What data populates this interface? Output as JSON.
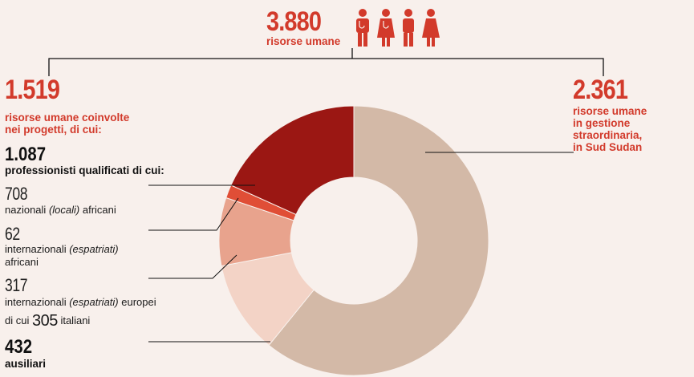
{
  "header": {
    "total_value": "3.880",
    "total_label": "risorse umane",
    "people_icon_color": "#d23a2b"
  },
  "left": {
    "value": "1.519",
    "label_line1": "risorse umane coinvolte",
    "label_line2": "nei progetti, di cui:",
    "qualified_value": "1.087",
    "qualified_label": "professionisti qualificati di cui:",
    "national_value": "708",
    "national_label_pre": "nazionali ",
    "national_label_em": "(locali)",
    "national_label_post": " africani",
    "intl_african_value": "62",
    "intl_african_pre": "internazionali ",
    "intl_african_em": "(espatriati)",
    "intl_african_line2": "africani",
    "intl_european_value": "317",
    "intl_european_pre": "internazionali ",
    "intl_european_em": "(espatriati)",
    "intl_european_post": " europei",
    "italian_pre": "di cui ",
    "italian_value": "305",
    "italian_post": " italiani",
    "auxiliary_value": "432",
    "auxiliary_label": "ausiliari"
  },
  "right": {
    "value": "2.361",
    "label_line1": "risorse umane",
    "label_line2": "in gestione",
    "label_line3": "straordinaria,",
    "label_line4": "in Sud Sudan"
  },
  "chart_data": {
    "type": "pie",
    "donut": true,
    "start": "top, clockwise",
    "slices": [
      {
        "name": "in gestione straordinaria, in Sud Sudan",
        "value": 2361,
        "color": "#d3b9a7"
      },
      {
        "name": "ausiliari",
        "value": 432,
        "color": "#f3d3c6"
      },
      {
        "name": "internazionali (espatriati) europei",
        "value": 317,
        "color": "#e8a38d"
      },
      {
        "name": "internazionali (espatriati) africani",
        "value": 62,
        "color": "#e04e36"
      },
      {
        "name": "nazionali (locali) africani",
        "value": 708,
        "color": "#9b1713"
      }
    ]
  }
}
